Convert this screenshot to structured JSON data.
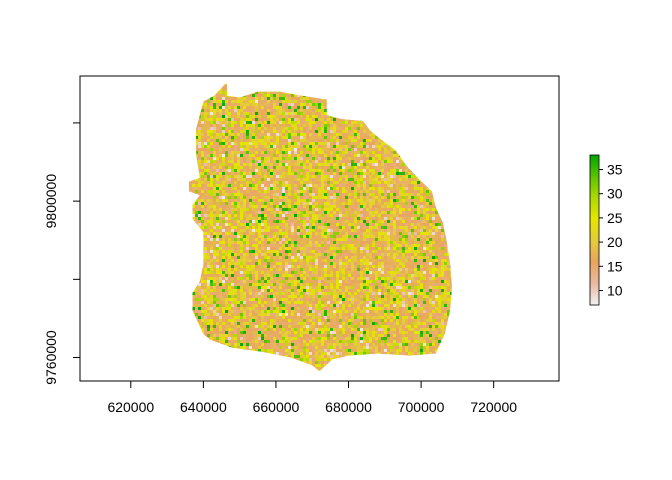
{
  "chart_data": {
    "type": "heatmap",
    "title": "",
    "xlabel": "",
    "ylabel": "",
    "xlim": [
      606000,
      738000
    ],
    "ylim": [
      9754000,
      9832000
    ],
    "x_ticks": [
      620000,
      640000,
      660000,
      680000,
      700000,
      720000
    ],
    "x_tick_labels": [
      "620000",
      "640000",
      "660000",
      "680000",
      "700000",
      "720000"
    ],
    "y_ticks": [
      9760000,
      9780000,
      9800000,
      9820000
    ],
    "y_tick_labels": [
      "9760000",
      "",
      "9800000",
      ""
    ],
    "legend": {
      "placement": "right",
      "min": 7,
      "max": 38,
      "ticks": [
        10,
        15,
        20,
        25,
        30,
        35
      ],
      "tick_labels": [
        "10",
        "15",
        "20",
        "25",
        "30",
        "35"
      ],
      "colors": [
        "#f2f2f2",
        "#ebb9a2",
        "#e8a55f",
        "#e3cb3a",
        "#e6e600",
        "#aed900",
        "#5dc300",
        "#00a600"
      ]
    },
    "region_outline": [
      [
        646500,
        9830000
      ],
      [
        646500,
        9827000
      ],
      [
        650000,
        9826500
      ],
      [
        655000,
        9828000
      ],
      [
        661000,
        9828000
      ],
      [
        667000,
        9827000
      ],
      [
        674000,
        9826000
      ],
      [
        674000,
        9822000
      ],
      [
        678000,
        9821000
      ],
      [
        684000,
        9820500
      ],
      [
        686000,
        9818000
      ],
      [
        690000,
        9815000
      ],
      [
        693000,
        9813000
      ],
      [
        696000,
        9809000
      ],
      [
        699000,
        9806000
      ],
      [
        703000,
        9802500
      ],
      [
        704000,
        9798500
      ],
      [
        706000,
        9794500
      ],
      [
        707000,
        9790000
      ],
      [
        708000,
        9784000
      ],
      [
        708500,
        9778000
      ],
      [
        708000,
        9772000
      ],
      [
        706500,
        9766000
      ],
      [
        704000,
        9761000
      ],
      [
        697000,
        9760500
      ],
      [
        688000,
        9761000
      ],
      [
        680000,
        9760500
      ],
      [
        675500,
        9759500
      ],
      [
        672000,
        9756500
      ],
      [
        670000,
        9758000
      ],
      [
        664000,
        9760000
      ],
      [
        656000,
        9761500
      ],
      [
        648000,
        9762500
      ],
      [
        642000,
        9764500
      ],
      [
        640000,
        9766000
      ],
      [
        638500,
        9769000
      ],
      [
        637000,
        9772000
      ],
      [
        637000,
        9776500
      ],
      [
        639000,
        9779500
      ],
      [
        640000,
        9784000
      ],
      [
        640000,
        9788000
      ],
      [
        640000,
        9792000
      ],
      [
        637000,
        9795500
      ],
      [
        637000,
        9799000
      ],
      [
        639000,
        9801500
      ],
      [
        636000,
        9802500
      ],
      [
        636000,
        9805000
      ],
      [
        639000,
        9806000
      ],
      [
        638000,
        9812000
      ],
      [
        638000,
        9818500
      ],
      [
        639000,
        9822000
      ],
      [
        640000,
        9825500
      ],
      [
        643000,
        9827000
      ],
      [
        646000,
        9830000
      ]
    ]
  }
}
